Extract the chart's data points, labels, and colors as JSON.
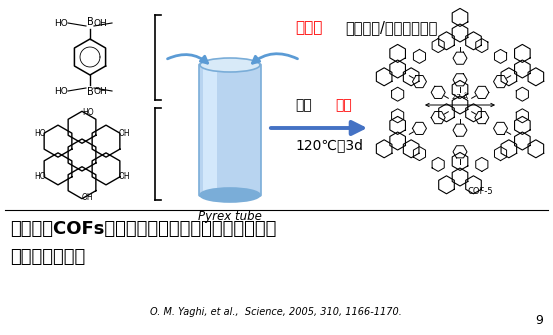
{
  "bg_color": "#ffffff",
  "title_line1": "特点：对COFs材料具有较好的普适性，但合成时间",
  "title_line2": "较长，温度较高",
  "ref_text": "O. M. Yaghi, et al.,  Science, 2005, 310, 1166-1170.",
  "page_num": "9",
  "solvent_red": "溶剂：",
  "solvent_black": "均三甲苯/二氧六环混合",
  "degas_label": "脱气",
  "seal_label": "密封",
  "condition_label": "120℃，3d",
  "pyrex_label": "Pyrex tube",
  "cof_label": "COF-5",
  "arrow_color": "#5b9bd5",
  "cyl_color1": "#c5dff5",
  "cyl_color2": "#7ab8e8"
}
